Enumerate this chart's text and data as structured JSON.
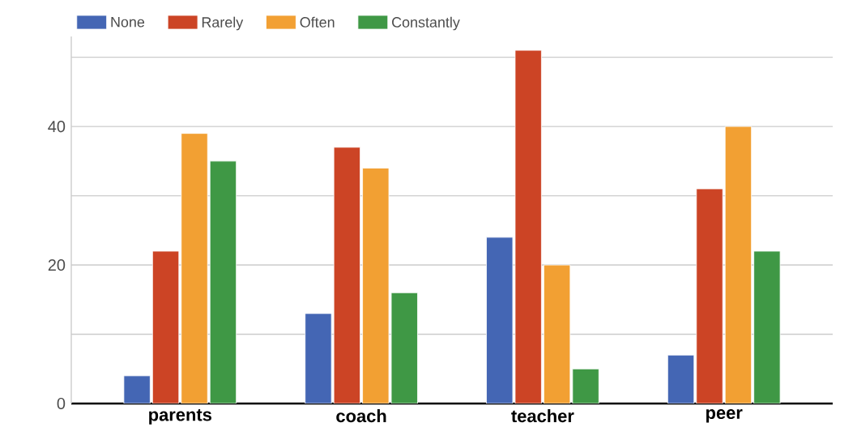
{
  "chart_data": {
    "type": "bar",
    "categories": [
      "parents",
      "coach",
      "teacher",
      "peer"
    ],
    "series": [
      {
        "name": "None",
        "color": "#4466b4",
        "values": [
          4,
          13,
          24,
          7
        ]
      },
      {
        "name": "Rarely",
        "color": "#cc4425",
        "values": [
          22,
          37,
          51,
          31
        ]
      },
      {
        "name": "Often",
        "color": "#f2a033",
        "values": [
          39,
          34,
          20,
          40
        ]
      },
      {
        "name": "Constantly",
        "color": "#3f9845",
        "values": [
          35,
          16,
          5,
          22
        ]
      }
    ],
    "ylim": [
      0,
      53
    ],
    "yticks": [
      0,
      {
        "value": 10,
        "label": null
      },
      20,
      {
        "value": 30,
        "label": null
      },
      40,
      {
        "value": 50,
        "label": null
      }
    ],
    "grid": "y",
    "legend": "top left"
  }
}
